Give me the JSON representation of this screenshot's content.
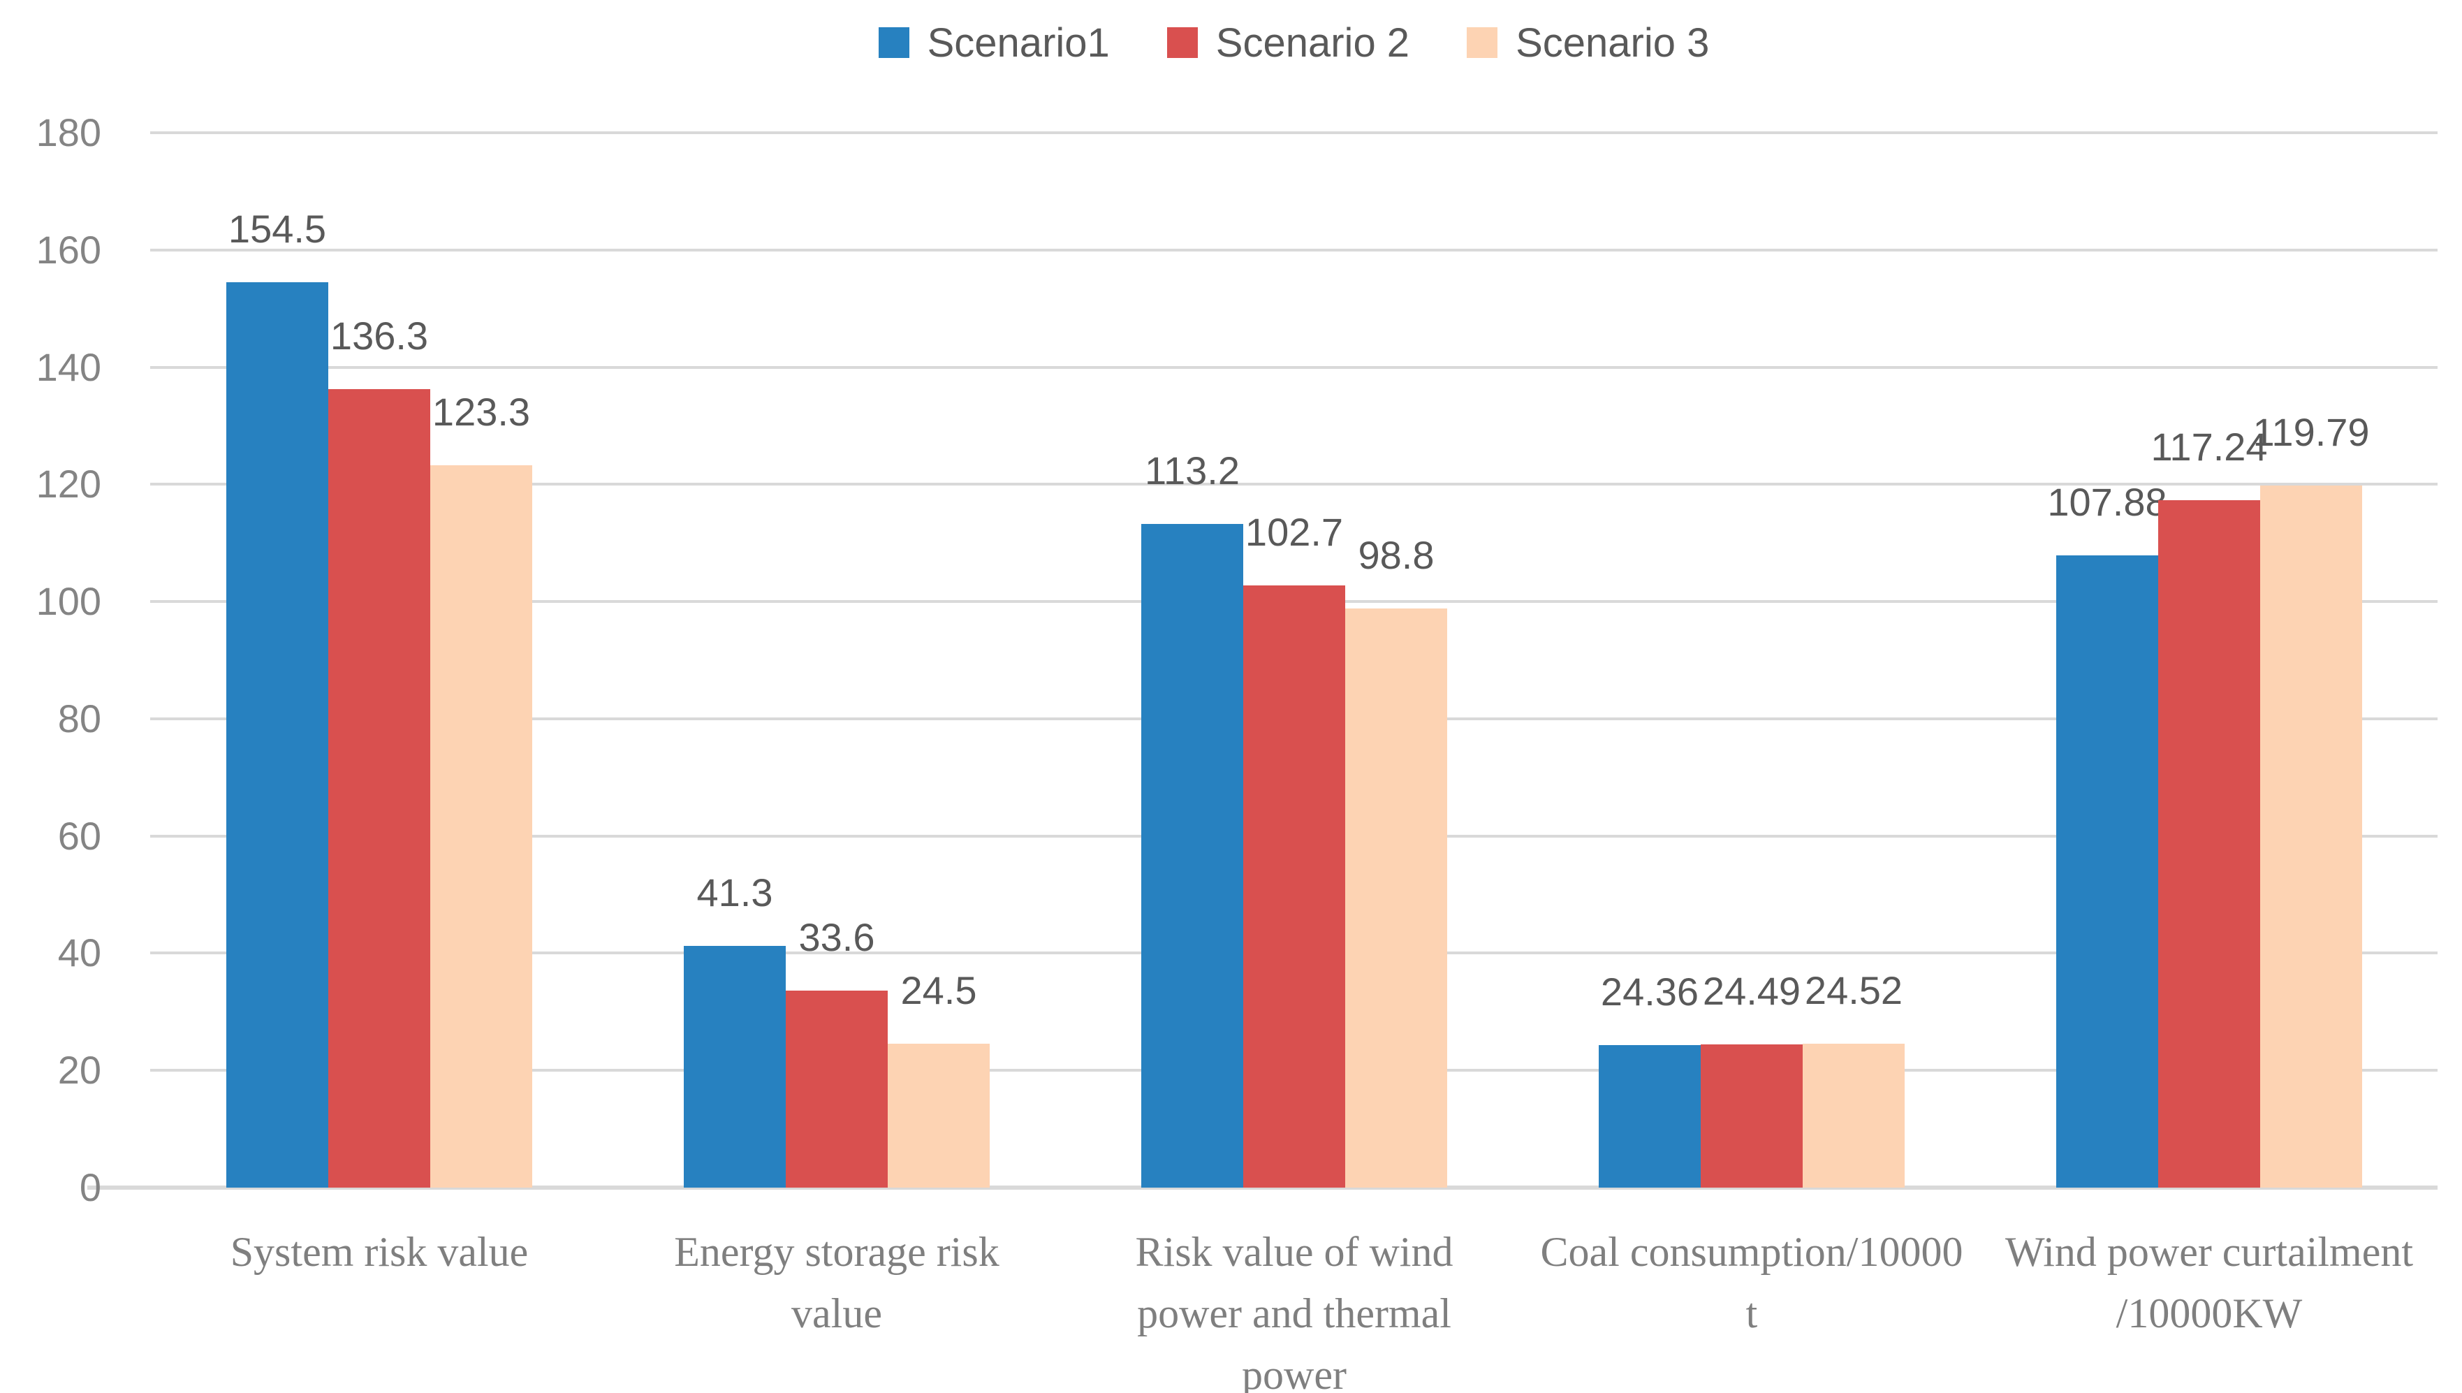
{
  "chart_data": {
    "type": "bar",
    "title": "",
    "categories": [
      "System risk value",
      "Energy storage risk value",
      "Risk value of wind power and thermal power",
      "Coal consumption/10000 t",
      "Wind power curtailment /10000KW"
    ],
    "category_lines": [
      "System risk value",
      "Energy storage risk\nvalue",
      "Risk value of wind\npower and thermal\npower",
      "Coal consumption/10000\nt",
      "Wind power curtailment\n/10000KW"
    ],
    "series": [
      {
        "name": "Scenario1",
        "color": "#2781C0",
        "values": [
          154.5,
          41.3,
          113.2,
          24.36,
          107.88
        ]
      },
      {
        "name": "Scenario 2",
        "color": "#D9504F",
        "values": [
          136.3,
          33.6,
          102.7,
          24.49,
          117.24
        ]
      },
      {
        "name": "Scenario 3",
        "color": "#FDD3B3",
        "values": [
          123.3,
          24.5,
          98.8,
          24.52,
          119.79
        ]
      }
    ],
    "value_labels": [
      [
        "154.5",
        "41.3",
        "113.2",
        "24.36",
        "107.88"
      ],
      [
        "136.3",
        "33.6",
        "102.7",
        "24.49",
        "117.24"
      ],
      [
        "123.3",
        "24.5",
        "98.8",
        "24.52",
        "119.79"
      ]
    ],
    "y_axis": {
      "min": 0,
      "max": 180,
      "step": 20,
      "tick_labels": [
        "0",
        "20",
        "40",
        "60",
        "80",
        "100",
        "120",
        "140",
        "160",
        "180"
      ]
    },
    "xlabel": "",
    "ylabel": "",
    "legend_position": "top",
    "grid": true,
    "colors": {
      "gridline": "#D9D9D9",
      "tick_text": "#848484",
      "value_label_text": "#595959",
      "category_text": "#7F7F7F",
      "legend_text": "#595959"
    }
  }
}
